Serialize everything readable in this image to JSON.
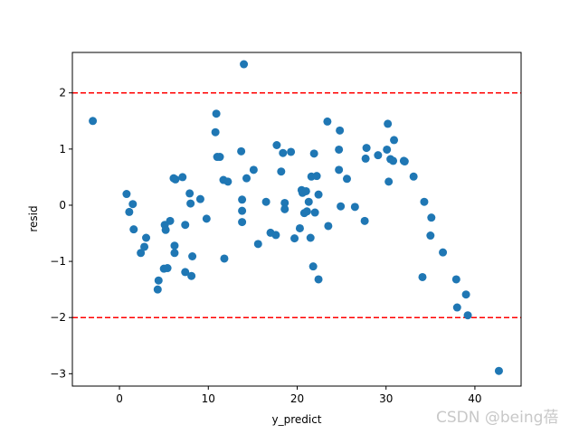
{
  "chart_data": {
    "type": "scatter",
    "title": "",
    "xlabel": "y_predict",
    "ylabel": "resid",
    "xlim": [
      -5.3,
      45.2
    ],
    "ylim": [
      -3.22,
      2.72
    ],
    "xticks": [
      0,
      10,
      20,
      30,
      40
    ],
    "yticks": [
      -3,
      -2,
      -1,
      0,
      1,
      2
    ],
    "grid": false,
    "point_color": "#1f77b4",
    "reference_lines": [
      {
        "y": 2,
        "color": "#ff0000",
        "style": "dashed"
      },
      {
        "y": -2,
        "color": "#ff0000",
        "style": "dashed"
      }
    ],
    "points": [
      [
        -3.0,
        1.5
      ],
      [
        0.8,
        0.2
      ],
      [
        1.1,
        -0.12
      ],
      [
        1.5,
        0.02
      ],
      [
        1.6,
        -0.43
      ],
      [
        2.4,
        -0.85
      ],
      [
        2.8,
        -0.74
      ],
      [
        3.0,
        -0.58
      ],
      [
        4.3,
        -1.5
      ],
      [
        4.4,
        -1.34
      ],
      [
        5.0,
        -1.13
      ],
      [
        5.1,
        -0.35
      ],
      [
        5.2,
        -0.44
      ],
      [
        5.4,
        -1.12
      ],
      [
        5.7,
        -0.28
      ],
      [
        6.1,
        0.48
      ],
      [
        6.2,
        -0.72
      ],
      [
        6.2,
        -0.85
      ],
      [
        6.3,
        0.46
      ],
      [
        7.1,
        0.5
      ],
      [
        7.4,
        -1.19
      ],
      [
        7.4,
        -0.35
      ],
      [
        7.9,
        0.21
      ],
      [
        8.0,
        0.03
      ],
      [
        8.1,
        -1.26
      ],
      [
        8.2,
        -0.91
      ],
      [
        9.1,
        0.11
      ],
      [
        9.8,
        -0.24
      ],
      [
        10.8,
        1.3
      ],
      [
        10.9,
        1.63
      ],
      [
        11.0,
        0.86
      ],
      [
        11.3,
        0.86
      ],
      [
        11.7,
        0.45
      ],
      [
        11.8,
        -0.95
      ],
      [
        12.2,
        0.42
      ],
      [
        13.7,
        0.96
      ],
      [
        13.8,
        0.1
      ],
      [
        13.8,
        -0.1
      ],
      [
        13.8,
        -0.3
      ],
      [
        14.0,
        2.51
      ],
      [
        14.3,
        0.48
      ],
      [
        15.1,
        0.63
      ],
      [
        15.6,
        -0.69
      ],
      [
        16.5,
        0.06
      ],
      [
        17.0,
        -0.49
      ],
      [
        17.6,
        -0.53
      ],
      [
        17.7,
        1.07
      ],
      [
        18.2,
        0.6
      ],
      [
        18.4,
        0.93
      ],
      [
        18.6,
        0.04
      ],
      [
        18.6,
        -0.07
      ],
      [
        19.3,
        0.95
      ],
      [
        19.7,
        -0.59
      ],
      [
        20.3,
        -0.41
      ],
      [
        20.5,
        0.27
      ],
      [
        20.6,
        0.22
      ],
      [
        20.8,
        -0.14
      ],
      [
        21.0,
        0.25
      ],
      [
        21.1,
        -0.11
      ],
      [
        21.3,
        0.06
      ],
      [
        21.5,
        -0.58
      ],
      [
        21.6,
        0.51
      ],
      [
        21.8,
        -1.09
      ],
      [
        21.9,
        0.92
      ],
      [
        22.0,
        -0.13
      ],
      [
        22.2,
        0.52
      ],
      [
        22.4,
        -1.32
      ],
      [
        22.4,
        0.19
      ],
      [
        23.4,
        1.49
      ],
      [
        23.5,
        -0.37
      ],
      [
        24.7,
        0.99
      ],
      [
        24.7,
        0.63
      ],
      [
        24.8,
        1.33
      ],
      [
        24.9,
        -0.02
      ],
      [
        25.6,
        0.47
      ],
      [
        26.5,
        -0.03
      ],
      [
        27.6,
        -0.28
      ],
      [
        27.7,
        0.83
      ],
      [
        27.8,
        1.02
      ],
      [
        29.1,
        0.89
      ],
      [
        30.1,
        0.99
      ],
      [
        30.2,
        1.45
      ],
      [
        30.3,
        0.42
      ],
      [
        30.5,
        0.82
      ],
      [
        30.8,
        0.79
      ],
      [
        30.9,
        1.16
      ],
      [
        32.0,
        0.79
      ],
      [
        32.1,
        0.78
      ],
      [
        33.1,
        0.51
      ],
      [
        34.1,
        -1.28
      ],
      [
        34.3,
        0.06
      ],
      [
        35.0,
        -0.54
      ],
      [
        35.1,
        -0.22
      ],
      [
        36.4,
        -0.84
      ],
      [
        37.9,
        -1.32
      ],
      [
        38.0,
        -1.82
      ],
      [
        39.0,
        -1.59
      ],
      [
        39.2,
        -1.96
      ],
      [
        42.7,
        -2.95
      ]
    ]
  },
  "watermark": "CSDN @being蓓"
}
